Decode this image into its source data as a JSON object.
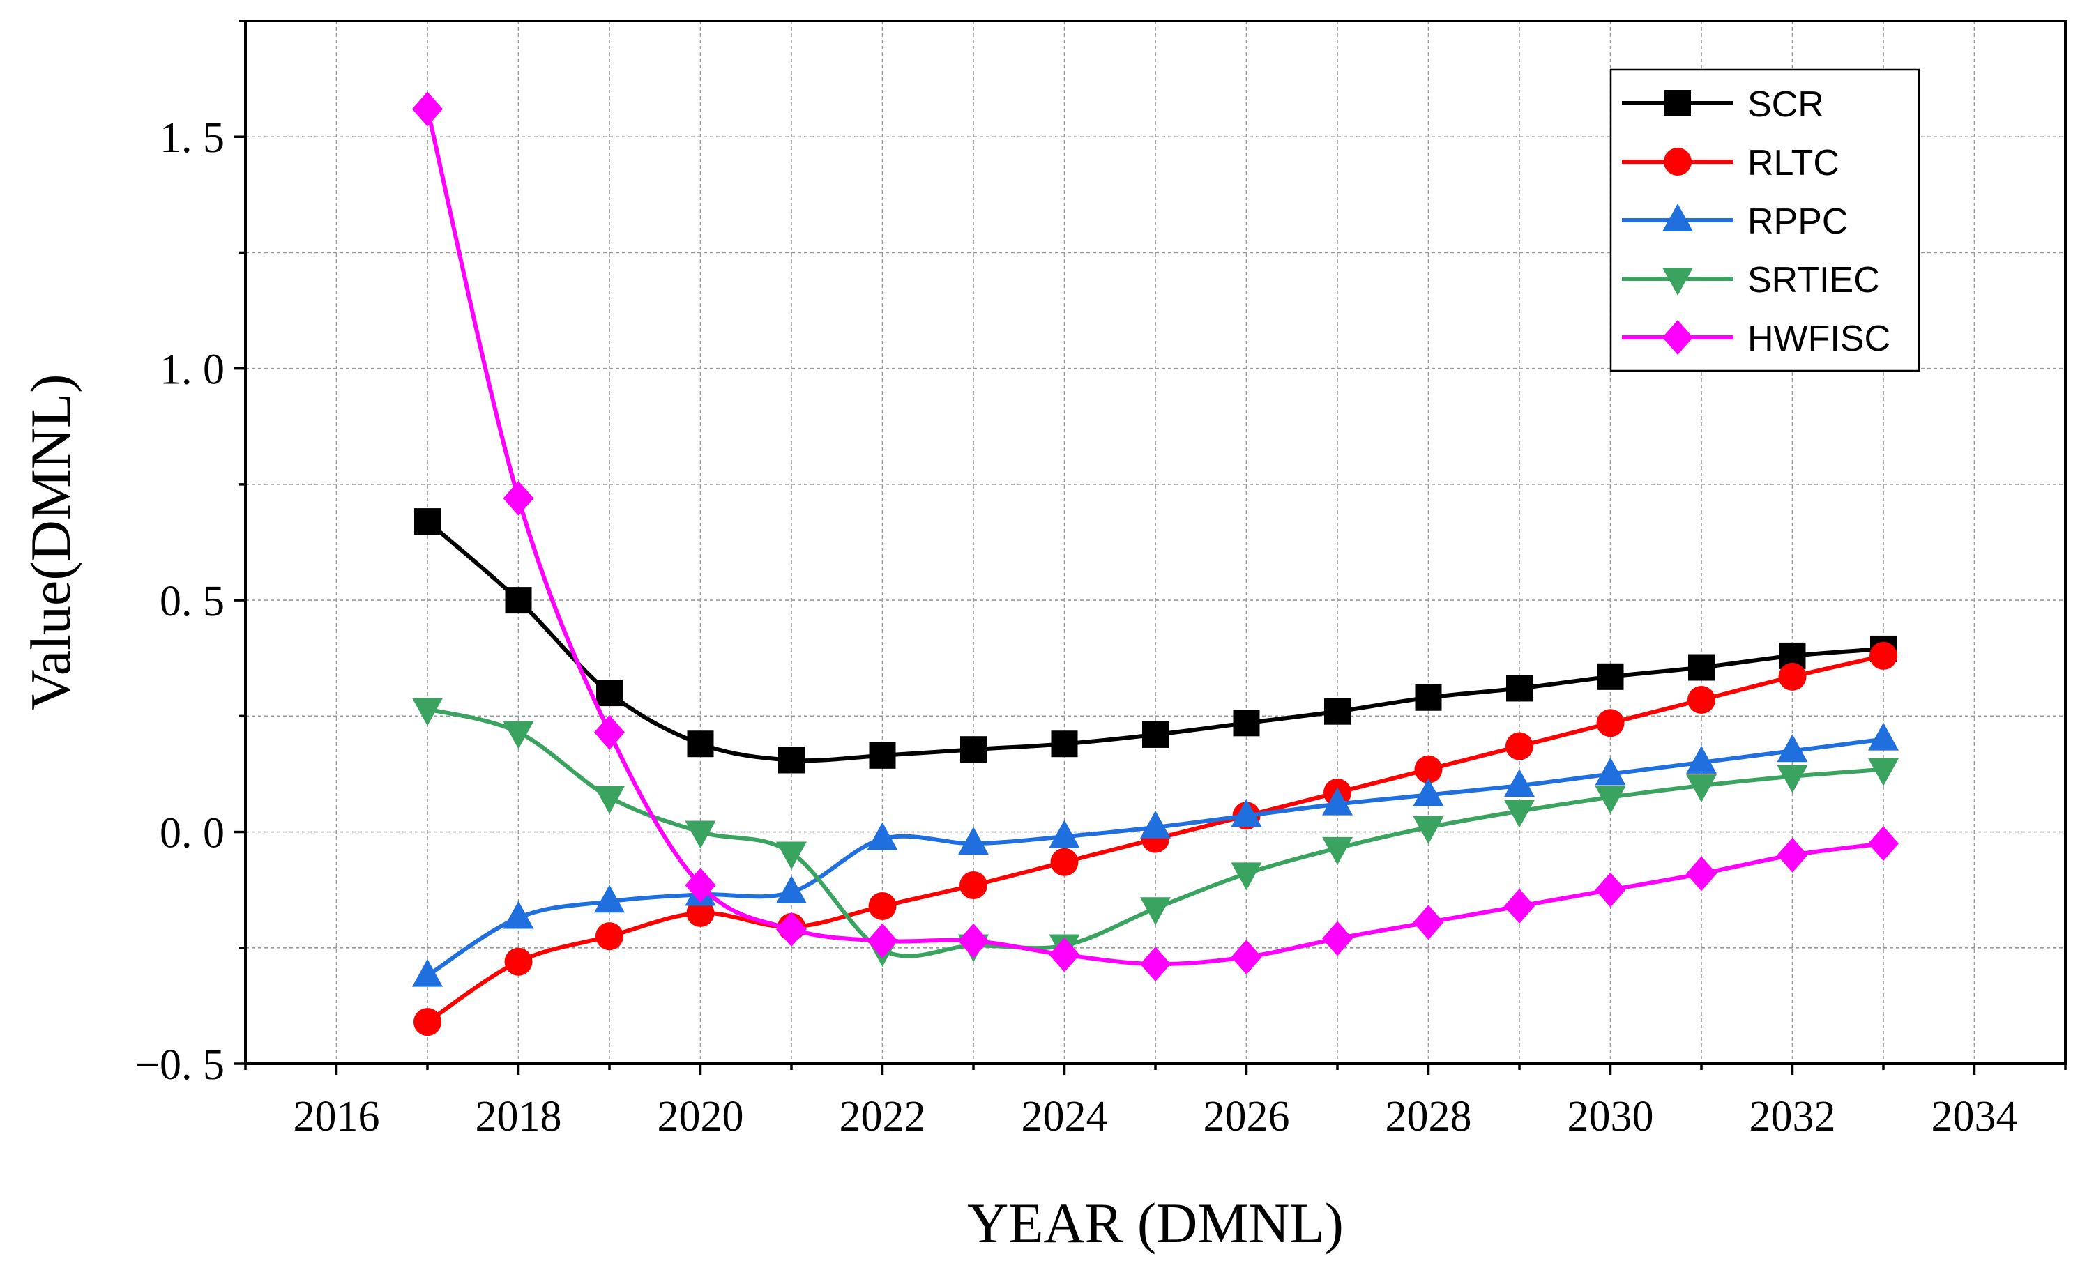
{
  "chart_data": {
    "type": "line",
    "title": "",
    "xlabel": "YEAR (DMNL)",
    "ylabel": "Value(DMNL)",
    "xlim": [
      2015,
      2035
    ],
    "ylim": [
      -0.5,
      1.75
    ],
    "x_ticks": [
      2016,
      2018,
      2020,
      2022,
      2024,
      2026,
      2028,
      2030,
      2032,
      2034
    ],
    "x_tick_labels": [
      "2016",
      "2018",
      "2020",
      "2022",
      "2024",
      "2026",
      "2028",
      "2030",
      "2032",
      "2034"
    ],
    "y_ticks": [
      -0.5,
      0.0,
      0.5,
      1.0,
      1.5
    ],
    "y_tick_labels": [
      "−0. 5",
      "0. 0",
      "0. 5",
      "1. 0",
      "1. 5"
    ],
    "grid": true,
    "legend_position": "top-right",
    "x": [
      2017,
      2018,
      2019,
      2020,
      2021,
      2022,
      2023,
      2024,
      2025,
      2026,
      2027,
      2028,
      2029,
      2030,
      2031,
      2032,
      2033
    ],
    "series": [
      {
        "name": "SCR",
        "color": "#000000",
        "marker": "square",
        "values": [
          0.67,
          0.5,
          0.3,
          0.19,
          0.155,
          0.165,
          0.178,
          0.19,
          0.21,
          0.235,
          0.26,
          0.29,
          0.31,
          0.335,
          0.355,
          0.38,
          0.395
        ]
      },
      {
        "name": "RLTC",
        "color": "#ff0000",
        "marker": "circle",
        "values": [
          -0.41,
          -0.28,
          -0.225,
          -0.175,
          -0.205,
          -0.16,
          -0.115,
          -0.065,
          -0.015,
          0.035,
          0.085,
          0.135,
          0.185,
          0.235,
          0.285,
          0.335,
          0.38
        ]
      },
      {
        "name": "RPPC",
        "color": "#1f6fdf",
        "marker": "triangle-up",
        "values": [
          -0.31,
          -0.185,
          -0.15,
          -0.135,
          -0.13,
          -0.015,
          -0.025,
          -0.01,
          0.01,
          0.035,
          0.06,
          0.08,
          0.1,
          0.125,
          0.15,
          0.175,
          0.2
        ]
      },
      {
        "name": "SRTIEC",
        "color": "#3aa35f",
        "marker": "triangle-down",
        "values": [
          0.265,
          0.215,
          0.075,
          0.0,
          -0.045,
          -0.255,
          -0.245,
          -0.245,
          -0.165,
          -0.09,
          -0.035,
          0.01,
          0.045,
          0.075,
          0.1,
          0.12,
          0.135
        ]
      },
      {
        "name": "HWFISC",
        "color": "#ff00ff",
        "marker": "diamond",
        "values": [
          1.56,
          0.72,
          0.215,
          -0.115,
          -0.21,
          -0.235,
          -0.235,
          -0.265,
          -0.285,
          -0.27,
          -0.23,
          -0.195,
          -0.16,
          -0.125,
          -0.09,
          -0.05,
          -0.025
        ]
      }
    ]
  }
}
